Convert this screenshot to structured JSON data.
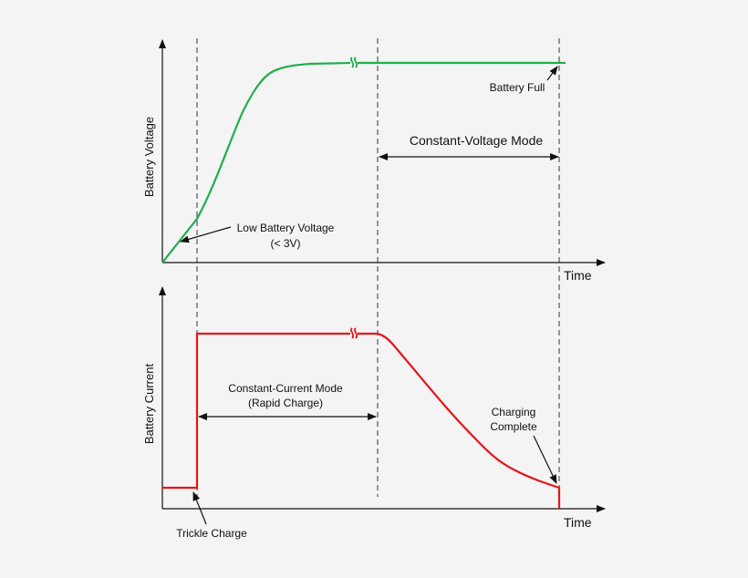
{
  "top_panel": {
    "y_axis_title": "Battery Voltage",
    "x_axis_title": "Time",
    "low_voltage_label_line1": "Low Battery Voltage",
    "low_voltage_label_line2": "(< 3V)",
    "cv_mode_label": "Constant-Voltage Mode",
    "battery_full_label": "Battery Full",
    "curve_color": "#1fae4b"
  },
  "bottom_panel": {
    "y_axis_title": "Battery Current",
    "x_axis_title": "Time",
    "cc_mode_label_line1": "Constant-Current Mode",
    "cc_mode_label_line2": "(Rapid Charge)",
    "complete_label_line1": "Charging",
    "complete_label_line2": "Complete",
    "trickle_label": "Trickle Charge",
    "curve_color": "#e8141b"
  }
}
